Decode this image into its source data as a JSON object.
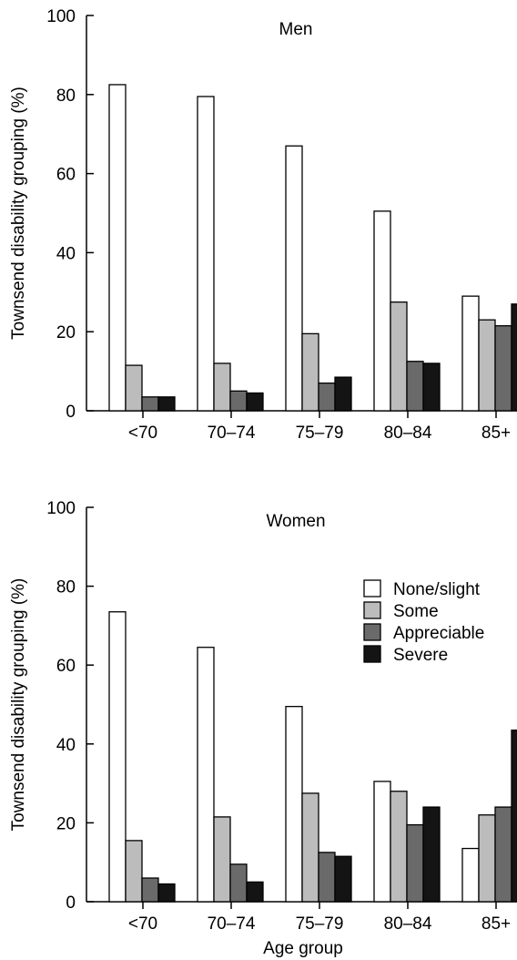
{
  "figure": {
    "xlabel": "Age group"
  },
  "legend": [
    {
      "label": "None/slight",
      "color": "#ffffff"
    },
    {
      "label": "Some",
      "color": "#bcbcbc"
    },
    {
      "label": "Appreciable",
      "color": "#6a6a6a"
    },
    {
      "label": "Severe",
      "color": "#141414"
    }
  ],
  "chart_data": [
    {
      "type": "bar",
      "title": "Men",
      "ylabel": "Townsend disability grouping (%)",
      "xlabel": "",
      "ylim": [
        0,
        100
      ],
      "yticks": [
        0,
        20,
        40,
        60,
        80,
        100
      ],
      "categories": [
        "<70",
        "70–74",
        "75–79",
        "80–84",
        "85+"
      ],
      "series": [
        {
          "name": "None/slight",
          "values": [
            82.5,
            79.5,
            67,
            50.5,
            29
          ]
        },
        {
          "name": "Some",
          "values": [
            11.5,
            12,
            19.5,
            27.5,
            23
          ]
        },
        {
          "name": "Appreciable",
          "values": [
            3.5,
            5,
            7,
            12.5,
            21.5
          ]
        },
        {
          "name": "Severe",
          "values": [
            3.5,
            4.5,
            8.5,
            12,
            27
          ]
        }
      ]
    },
    {
      "type": "bar",
      "title": "Women",
      "ylabel": "Townsend disability grouping (%)",
      "xlabel": "Age group",
      "ylim": [
        0,
        100
      ],
      "yticks": [
        0,
        20,
        40,
        60,
        80,
        100
      ],
      "legend_position": "right",
      "categories": [
        "<70",
        "70–74",
        "75–79",
        "80–84",
        "85+"
      ],
      "series": [
        {
          "name": "None/slight",
          "values": [
            73.5,
            64.5,
            49.5,
            30.5,
            13.5
          ]
        },
        {
          "name": "Some",
          "values": [
            15.5,
            21.5,
            27.5,
            28,
            22
          ]
        },
        {
          "name": "Appreciable",
          "values": [
            6,
            9.5,
            12.5,
            19.5,
            24
          ]
        },
        {
          "name": "Severe",
          "values": [
            4.5,
            5,
            11.5,
            24,
            43.5
          ]
        }
      ]
    }
  ]
}
